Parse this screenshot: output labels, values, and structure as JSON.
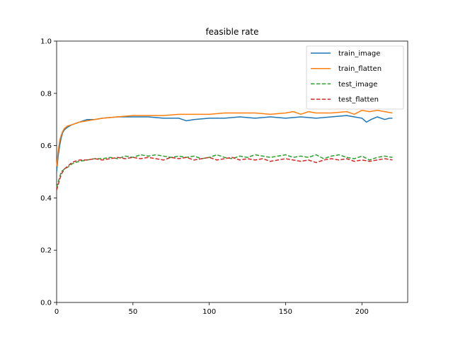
{
  "chart_data": {
    "type": "line",
    "title": "feasible rate",
    "xlabel": "",
    "ylabel": "",
    "xlim": [
      0,
      230
    ],
    "ylim": [
      0.0,
      1.0
    ],
    "x_ticks": [
      0,
      50,
      100,
      150,
      200
    ],
    "y_ticks": [
      0.0,
      0.2,
      0.4,
      0.6,
      0.8,
      1.0
    ],
    "x_tick_labels": [
      "0",
      "50",
      "100",
      "150",
      "200"
    ],
    "y_tick_labels": [
      "0.0",
      "0.2",
      "0.4",
      "0.6",
      "0.8",
      "1.0"
    ],
    "grid": false,
    "legend_position": "top-right",
    "series": [
      {
        "name": "train_image",
        "color": "#1f77b4",
        "style": "solid",
        "points": [
          [
            0,
            0.5
          ],
          [
            1,
            0.56
          ],
          [
            2,
            0.6
          ],
          [
            3,
            0.63
          ],
          [
            4,
            0.65
          ],
          [
            5,
            0.66
          ],
          [
            7,
            0.67
          ],
          [
            10,
            0.68
          ],
          [
            15,
            0.69
          ],
          [
            20,
            0.7
          ],
          [
            25,
            0.7
          ],
          [
            30,
            0.705
          ],
          [
            40,
            0.71
          ],
          [
            50,
            0.71
          ],
          [
            60,
            0.71
          ],
          [
            70,
            0.705
          ],
          [
            80,
            0.705
          ],
          [
            85,
            0.695
          ],
          [
            90,
            0.7
          ],
          [
            100,
            0.705
          ],
          [
            110,
            0.705
          ],
          [
            120,
            0.71
          ],
          [
            130,
            0.705
          ],
          [
            140,
            0.71
          ],
          [
            150,
            0.705
          ],
          [
            160,
            0.71
          ],
          [
            170,
            0.705
          ],
          [
            180,
            0.71
          ],
          [
            190,
            0.715
          ],
          [
            195,
            0.71
          ],
          [
            200,
            0.705
          ],
          [
            203,
            0.69
          ],
          [
            206,
            0.7
          ],
          [
            210,
            0.71
          ],
          [
            215,
            0.7
          ],
          [
            218,
            0.705
          ],
          [
            220,
            0.705
          ]
        ]
      },
      {
        "name": "train_flatten",
        "color": "#ff7f0e",
        "style": "solid",
        "points": [
          [
            0,
            0.52
          ],
          [
            1,
            0.58
          ],
          [
            2,
            0.62
          ],
          [
            3,
            0.64
          ],
          [
            4,
            0.655
          ],
          [
            5,
            0.665
          ],
          [
            7,
            0.675
          ],
          [
            10,
            0.68
          ],
          [
            15,
            0.69
          ],
          [
            20,
            0.695
          ],
          [
            25,
            0.7
          ],
          [
            30,
            0.705
          ],
          [
            40,
            0.71
          ],
          [
            50,
            0.715
          ],
          [
            60,
            0.715
          ],
          [
            70,
            0.715
          ],
          [
            80,
            0.72
          ],
          [
            90,
            0.72
          ],
          [
            100,
            0.72
          ],
          [
            110,
            0.725
          ],
          [
            120,
            0.725
          ],
          [
            130,
            0.725
          ],
          [
            140,
            0.72
          ],
          [
            150,
            0.725
          ],
          [
            155,
            0.73
          ],
          [
            160,
            0.72
          ],
          [
            165,
            0.73
          ],
          [
            170,
            0.725
          ],
          [
            180,
            0.725
          ],
          [
            190,
            0.73
          ],
          [
            195,
            0.72
          ],
          [
            200,
            0.735
          ],
          [
            205,
            0.73
          ],
          [
            210,
            0.735
          ],
          [
            215,
            0.73
          ],
          [
            220,
            0.725
          ]
        ]
      },
      {
        "name": "test_image",
        "color": "#2ca02c",
        "style": "dashed",
        "points": [
          [
            0,
            0.44
          ],
          [
            1,
            0.46
          ],
          [
            2,
            0.48
          ],
          [
            3,
            0.5
          ],
          [
            5,
            0.51
          ],
          [
            8,
            0.52
          ],
          [
            10,
            0.53
          ],
          [
            12,
            0.535
          ],
          [
            15,
            0.54
          ],
          [
            20,
            0.545
          ],
          [
            25,
            0.55
          ],
          [
            30,
            0.55
          ],
          [
            35,
            0.555
          ],
          [
            40,
            0.55
          ],
          [
            45,
            0.56
          ],
          [
            50,
            0.555
          ],
          [
            55,
            0.565
          ],
          [
            60,
            0.56
          ],
          [
            65,
            0.565
          ],
          [
            70,
            0.56
          ],
          [
            75,
            0.555
          ],
          [
            80,
            0.56
          ],
          [
            85,
            0.555
          ],
          [
            90,
            0.56
          ],
          [
            95,
            0.55
          ],
          [
            100,
            0.555
          ],
          [
            105,
            0.565
          ],
          [
            110,
            0.555
          ],
          [
            115,
            0.55
          ],
          [
            120,
            0.56
          ],
          [
            125,
            0.555
          ],
          [
            130,
            0.565
          ],
          [
            135,
            0.56
          ],
          [
            140,
            0.555
          ],
          [
            145,
            0.56
          ],
          [
            150,
            0.565
          ],
          [
            155,
            0.555
          ],
          [
            160,
            0.56
          ],
          [
            165,
            0.555
          ],
          [
            170,
            0.565
          ],
          [
            175,
            0.55
          ],
          [
            180,
            0.56
          ],
          [
            185,
            0.565
          ],
          [
            190,
            0.555
          ],
          [
            195,
            0.55
          ],
          [
            200,
            0.56
          ],
          [
            205,
            0.545
          ],
          [
            210,
            0.555
          ],
          [
            215,
            0.56
          ],
          [
            220,
            0.555
          ]
        ]
      },
      {
        "name": "test_flatten",
        "color": "#d62728",
        "style": "dashed",
        "points": [
          [
            0,
            0.43
          ],
          [
            1,
            0.45
          ],
          [
            2,
            0.47
          ],
          [
            3,
            0.49
          ],
          [
            5,
            0.51
          ],
          [
            8,
            0.525
          ],
          [
            10,
            0.535
          ],
          [
            12,
            0.54
          ],
          [
            15,
            0.545
          ],
          [
            20,
            0.545
          ],
          [
            25,
            0.55
          ],
          [
            30,
            0.545
          ],
          [
            35,
            0.55
          ],
          [
            40,
            0.555
          ],
          [
            45,
            0.55
          ],
          [
            50,
            0.555
          ],
          [
            55,
            0.55
          ],
          [
            60,
            0.555
          ],
          [
            65,
            0.55
          ],
          [
            70,
            0.545
          ],
          [
            75,
            0.555
          ],
          [
            80,
            0.55
          ],
          [
            85,
            0.555
          ],
          [
            90,
            0.545
          ],
          [
            95,
            0.55
          ],
          [
            100,
            0.555
          ],
          [
            105,
            0.545
          ],
          [
            110,
            0.55
          ],
          [
            115,
            0.555
          ],
          [
            120,
            0.545
          ],
          [
            125,
            0.55
          ],
          [
            130,
            0.545
          ],
          [
            135,
            0.55
          ],
          [
            140,
            0.54
          ],
          [
            145,
            0.545
          ],
          [
            150,
            0.55
          ],
          [
            155,
            0.545
          ],
          [
            160,
            0.54
          ],
          [
            165,
            0.545
          ],
          [
            170,
            0.535
          ],
          [
            175,
            0.545
          ],
          [
            180,
            0.55
          ],
          [
            185,
            0.545
          ],
          [
            190,
            0.55
          ],
          [
            195,
            0.54
          ],
          [
            200,
            0.545
          ],
          [
            205,
            0.54
          ],
          [
            210,
            0.545
          ],
          [
            215,
            0.55
          ],
          [
            220,
            0.545
          ]
        ]
      }
    ]
  }
}
